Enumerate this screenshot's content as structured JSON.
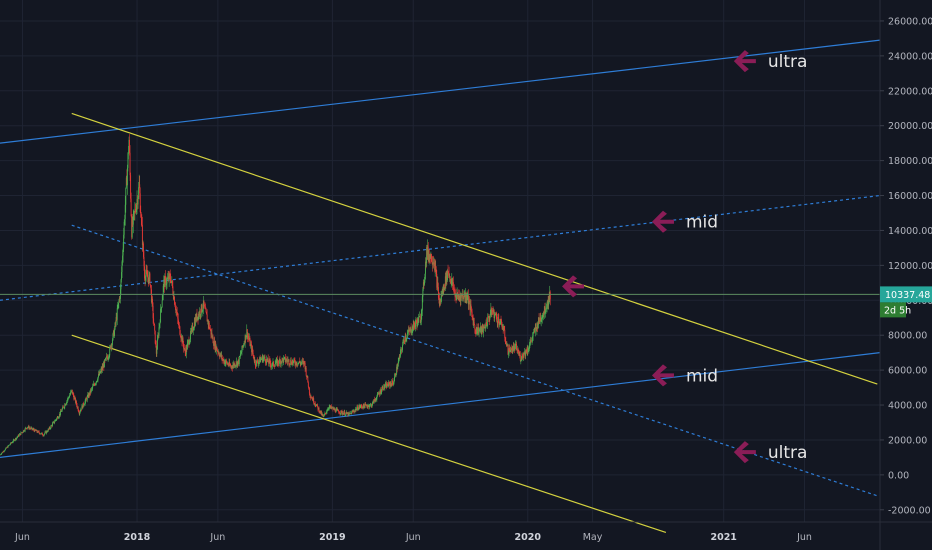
{
  "chart_data": {
    "type": "candlestick",
    "title": "",
    "xlabel": "",
    "ylabel": "",
    "ylim": [
      -2700,
      27200
    ],
    "xlim": [
      "2017-04-20",
      "2021-10-20"
    ],
    "grid": true,
    "colors": {
      "background": "#131722",
      "grid": "#1f2433",
      "candle_up": "#4caf50",
      "candle_down": "#e53935",
      "channel_lines": "#2e7dd7",
      "trend_lines": "#d4d23f",
      "arrows": "#8b1d57",
      "price_line": "#5d8c61",
      "countdown_badge": "#26a69a"
    },
    "y_ticks": [
      "26000.00",
      "24000.00",
      "22000.00",
      "20000.00",
      "18000.00",
      "16000.00",
      "14000.00",
      "12000.00",
      "10000.00",
      "8000.00",
      "6000.00",
      "4000.00",
      "2000.00",
      "0.00",
      "-2000.00"
    ],
    "x_ticks": [
      {
        "date": "2017-06-01",
        "label": "Jun",
        "bold": false
      },
      {
        "date": "2018-01-01",
        "label": "2018",
        "bold": true
      },
      {
        "date": "2018-06-01",
        "label": "Jun",
        "bold": false
      },
      {
        "date": "2019-01-01",
        "label": "2019",
        "bold": true
      },
      {
        "date": "2019-06-01",
        "label": "Jun",
        "bold": false
      },
      {
        "date": "2020-01-01",
        "label": "2020",
        "bold": true
      },
      {
        "date": "2020-05-01",
        "label": "May",
        "bold": false
      },
      {
        "date": "2021-01-01",
        "label": "2021",
        "bold": true
      },
      {
        "date": "2021-06-01",
        "label": "Jun",
        "bold": false
      }
    ],
    "last_price": {
      "value": 10337.48,
      "label": "10337.48",
      "countdown": "2d 5h"
    },
    "price_path": [
      [
        "2017-04-20",
        1150
      ],
      [
        "2017-05-10",
        1800
      ],
      [
        "2017-06-10",
        2750
      ],
      [
        "2017-07-10",
        2300
      ],
      [
        "2017-07-20",
        2600
      ],
      [
        "2017-08-10",
        3500
      ],
      [
        "2017-09-01",
        4800
      ],
      [
        "2017-09-15",
        3600
      ],
      [
        "2017-10-05",
        4700
      ],
      [
        "2017-10-25",
        5900
      ],
      [
        "2017-11-10",
        7000
      ],
      [
        "2017-11-20",
        8300
      ],
      [
        "2017-12-01",
        10500
      ],
      [
        "2017-12-10",
        15500
      ],
      [
        "2017-12-17",
        19200
      ],
      [
        "2017-12-22",
        14000
      ],
      [
        "2018-01-05",
        16500
      ],
      [
        "2018-01-15",
        11500
      ],
      [
        "2018-01-25",
        11200
      ],
      [
        "2018-02-06",
        7000
      ],
      [
        "2018-02-20",
        11000
      ],
      [
        "2018-03-05",
        11300
      ],
      [
        "2018-03-20",
        8500
      ],
      [
        "2018-04-01",
        7000
      ],
      [
        "2018-04-20",
        8900
      ],
      [
        "2018-05-05",
        9700
      ],
      [
        "2018-05-25",
        7500
      ],
      [
        "2018-06-10",
        6600
      ],
      [
        "2018-06-25",
        6200
      ],
      [
        "2018-07-10",
        6500
      ],
      [
        "2018-07-25",
        8200
      ],
      [
        "2018-08-10",
        6400
      ],
      [
        "2018-08-25",
        6700
      ],
      [
        "2018-09-10",
        6300
      ],
      [
        "2018-10-01",
        6600
      ],
      [
        "2018-10-20",
        6450
      ],
      [
        "2018-11-10",
        6400
      ],
      [
        "2018-11-20",
        4600
      ],
      [
        "2018-12-15",
        3300
      ],
      [
        "2018-12-25",
        3900
      ],
      [
        "2019-01-10",
        3650
      ],
      [
        "2019-02-01",
        3450
      ],
      [
        "2019-02-20",
        3900
      ],
      [
        "2019-03-15",
        4000
      ],
      [
        "2019-04-05",
        5000
      ],
      [
        "2019-04-25",
        5300
      ],
      [
        "2019-05-15",
        7800
      ],
      [
        "2019-06-01",
        8500
      ],
      [
        "2019-06-15",
        9000
      ],
      [
        "2019-06-26",
        12800
      ],
      [
        "2019-07-10",
        12300
      ],
      [
        "2019-07-20",
        9800
      ],
      [
        "2019-08-05",
        11700
      ],
      [
        "2019-08-20",
        10200
      ],
      [
        "2019-09-10",
        10300
      ],
      [
        "2019-09-25",
        8300
      ],
      [
        "2019-10-10",
        8300
      ],
      [
        "2019-10-26",
        9400
      ],
      [
        "2019-11-15",
        8500
      ],
      [
        "2019-11-25",
        7100
      ],
      [
        "2019-12-10",
        7300
      ],
      [
        "2019-12-18",
        6700
      ],
      [
        "2020-01-01",
        7200
      ],
      [
        "2020-01-10",
        7900
      ],
      [
        "2020-01-20",
        8700
      ],
      [
        "2020-02-01",
        9400
      ],
      [
        "2020-02-12",
        10337
      ]
    ],
    "trend_lines": [
      {
        "id": "channel-top-ultra",
        "style": "solid",
        "color": "#2e7dd7",
        "from": [
          "2017-04-20",
          19000
        ],
        "to": [
          "2021-10-20",
          24900
        ]
      },
      {
        "id": "channel-mid-upper",
        "style": "dashed",
        "color": "#2e7dd7",
        "from": [
          "2017-04-20",
          10000
        ],
        "to": [
          "2021-10-20",
          16000
        ]
      },
      {
        "id": "channel-bottom",
        "style": "solid",
        "color": "#2e7dd7",
        "from": [
          "2017-04-20",
          1000
        ],
        "to": [
          "2021-10-20",
          7000
        ]
      },
      {
        "id": "downtrend-top",
        "style": "solid",
        "color": "#d4d23f",
        "from": [
          "2017-09-01",
          20700
        ],
        "to": [
          "2021-10-15",
          5200
        ]
      },
      {
        "id": "downtrend-mid",
        "style": "dashed",
        "color": "#2e7dd7",
        "from": [
          "2017-09-01",
          14300
        ],
        "to": [
          "2021-10-15",
          -1200
        ]
      },
      {
        "id": "downtrend-bottom",
        "style": "solid",
        "color": "#d4d23f",
        "from": [
          "2017-09-01",
          8000
        ],
        "to": [
          "2020-09-15",
          -3300
        ]
      }
    ],
    "annotations": [
      {
        "label": "ultra",
        "date": "2021-01-20",
        "value": 23700
      },
      {
        "label": "mid",
        "date": "2020-08-20",
        "value": 14500
      },
      {
        "label": "mid",
        "date": "2020-08-20",
        "value": 5700
      },
      {
        "label": "ultra",
        "date": "2021-01-20",
        "value": 1300
      },
      {
        "label": "",
        "date": "2020-03-05",
        "value": 10800
      }
    ]
  }
}
